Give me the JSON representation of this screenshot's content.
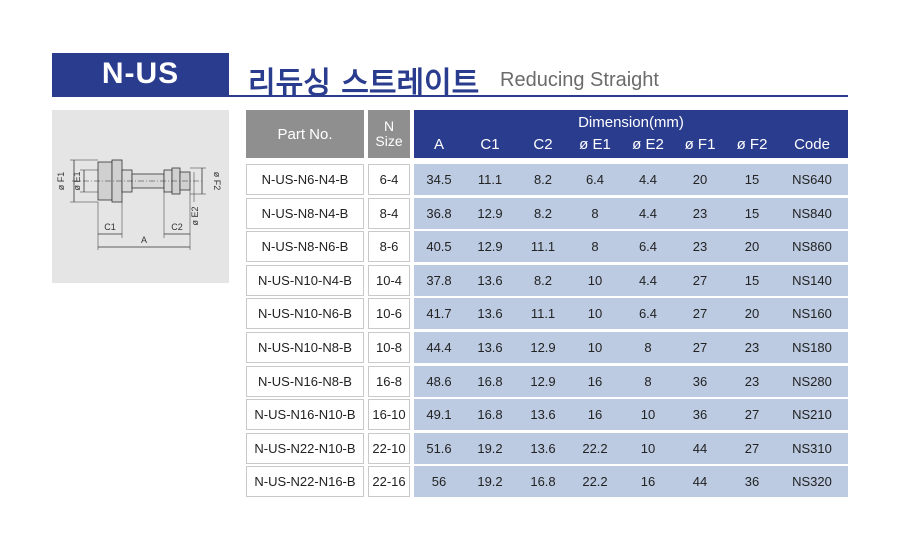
{
  "header": {
    "badge": "N-US",
    "title_kr": "리듀싱 스트레이트",
    "title_en": "Reducing Straight"
  },
  "drawing": {
    "labels": {
      "f1": "ø F1",
      "e1": "ø E1",
      "f2": "ø F2",
      "e2": "ø E2",
      "c1": "C1",
      "c2": "C2",
      "a": "A"
    }
  },
  "table": {
    "col_part": "Part No.",
    "col_n_line1": "N",
    "col_n_line2": "Size",
    "dimension_header": "Dimension(mm)",
    "dim_columns": [
      "A",
      "C1",
      "C2",
      "ø E1",
      "ø E2",
      "ø F1",
      "ø F2",
      "Code"
    ],
    "rows": [
      {
        "part": "N-US-N6-N4-B",
        "size": "6-4",
        "cells": [
          "34.5",
          "11.1",
          "8.2",
          "6.4",
          "4.4",
          "20",
          "15",
          "NS640"
        ]
      },
      {
        "part": "N-US-N8-N4-B",
        "size": "8-4",
        "cells": [
          "36.8",
          "12.9",
          "8.2",
          "8",
          "4.4",
          "23",
          "15",
          "NS840"
        ]
      },
      {
        "part": "N-US-N8-N6-B",
        "size": "8-6",
        "cells": [
          "40.5",
          "12.9",
          "11.1",
          "8",
          "6.4",
          "23",
          "20",
          "NS860"
        ]
      },
      {
        "part": "N-US-N10-N4-B",
        "size": "10-4",
        "cells": [
          "37.8",
          "13.6",
          "8.2",
          "10",
          "4.4",
          "27",
          "15",
          "NS140"
        ]
      },
      {
        "part": "N-US-N10-N6-B",
        "size": "10-6",
        "cells": [
          "41.7",
          "13.6",
          "11.1",
          "10",
          "6.4",
          "27",
          "20",
          "NS160"
        ]
      },
      {
        "part": "N-US-N10-N8-B",
        "size": "10-8",
        "cells": [
          "44.4",
          "13.6",
          "12.9",
          "10",
          "8",
          "27",
          "23",
          "NS180"
        ]
      },
      {
        "part": "N-US-N16-N8-B",
        "size": "16-8",
        "cells": [
          "48.6",
          "16.8",
          "12.9",
          "16",
          "8",
          "36",
          "23",
          "NS280"
        ]
      },
      {
        "part": "N-US-N16-N10-B",
        "size": "16-10",
        "cells": [
          "49.1",
          "16.8",
          "13.6",
          "16",
          "10",
          "36",
          "27",
          "NS210"
        ]
      },
      {
        "part": "N-US-N22-N10-B",
        "size": "22-10",
        "cells": [
          "51.6",
          "19.2",
          "13.6",
          "22.2",
          "10",
          "44",
          "27",
          "NS310"
        ]
      },
      {
        "part": "N-US-N22-N16-B",
        "size": "22-16",
        "cells": [
          "56",
          "19.2",
          "16.8",
          "22.2",
          "16",
          "44",
          "36",
          "NS320"
        ]
      }
    ]
  },
  "colors": {
    "brand_blue": "#2a3c8e",
    "header_gray": "#8f8f8f",
    "row_blue": "#bccbe2",
    "drawing_bg": "#e5e5e5"
  }
}
